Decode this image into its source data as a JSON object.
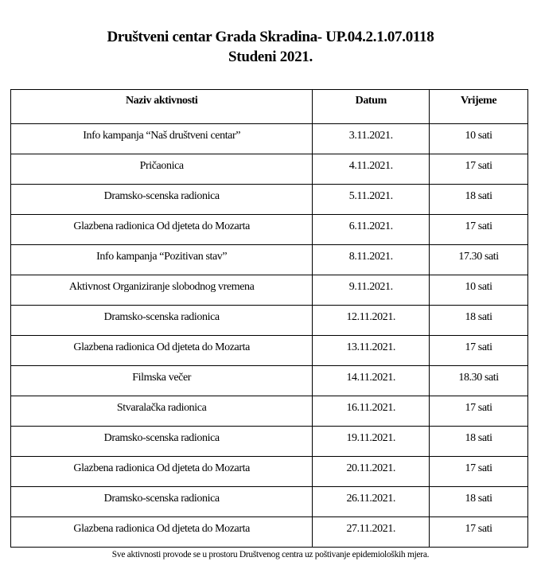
{
  "title": "Društveni centar Grada Skradina- UP.04.2.1.07.0118",
  "subtitle": "Studeni 2021.",
  "table": {
    "headers": [
      "Naziv aktivnosti",
      "Datum",
      "Vrijeme"
    ],
    "rows": [
      [
        "Info kampanja “Naš društveni centar”",
        "3.11.2021.",
        "10 sati"
      ],
      [
        "Pričaonica",
        "4.11.2021.",
        "17 sati"
      ],
      [
        "Dramsko-scenska radionica",
        "5.11.2021.",
        "18 sati"
      ],
      [
        "Glazbena radionica Od djeteta do Mozarta",
        "6.11.2021.",
        "17 sati"
      ],
      [
        "Info kampanja “Pozitivan stav”",
        "8.11.2021.",
        "17.30 sati"
      ],
      [
        "Aktivnost Organiziranje slobodnog vremena",
        "9.11.2021.",
        "10 sati"
      ],
      [
        "Dramsko-scenska radionica",
        "12.11.2021.",
        "18 sati"
      ],
      [
        "Glazbena radionica Od djeteta do Mozarta",
        "13.11.2021.",
        "17 sati"
      ],
      [
        "Filmska večer",
        "14.11.2021.",
        "18.30 sati"
      ],
      [
        "Stvaralačka radionica",
        "16.11.2021.",
        "17 sati"
      ],
      [
        "Dramsko-scenska radionica",
        "19.11.2021.",
        "18 sati"
      ],
      [
        "Glazbena radionica Od djeteta do Mozarta",
        "20.11.2021.",
        "17 sati"
      ],
      [
        "Dramsko-scenska radionica",
        "26.11.2021.",
        "18 sati"
      ],
      [
        "Glazbena radionica Od djeteta do Mozarta",
        "27.11.2021.",
        "17 sati"
      ]
    ]
  },
  "footer": "Sve aktivnosti provode se u prostoru Društvenog centra uz poštivanje epidemioloških mjera."
}
